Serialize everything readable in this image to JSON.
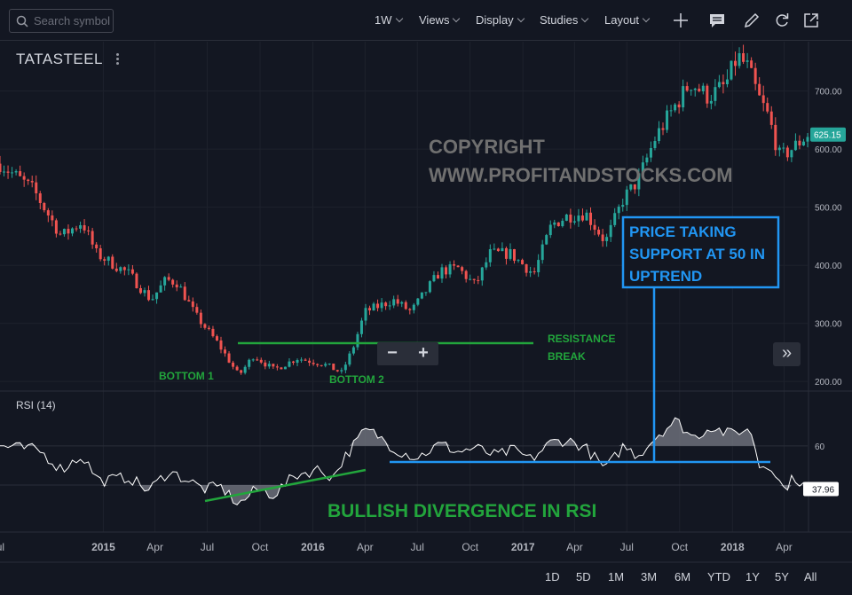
{
  "toolbar": {
    "search_placeholder": "Search symbol",
    "interval": "1W",
    "views": "Views",
    "display": "Display",
    "studies": "Studies",
    "layout": "Layout",
    "icons": [
      "add-icon",
      "notes-icon",
      "draw-icon",
      "refresh-icon",
      "popout-icon"
    ]
  },
  "symbol": "TATASTEEL",
  "rsi_label": "RSI (14)",
  "navigation": {
    "zoom_out": "−",
    "zoom_in": "+",
    "scroll_forward": "»"
  },
  "time_ranges": [
    "1D",
    "5D",
    "1M",
    "3M",
    "6M",
    "YTD",
    "1Y",
    "5Y",
    "All"
  ],
  "colors": {
    "background": "#131722",
    "up_candle": "#26a69a",
    "down_candle": "#ef5350",
    "annotation_green": "#22a53c",
    "annotation_blue": "#2196f3",
    "watermark": "#707070",
    "price_tag": "#26a69a"
  },
  "chart_data": [
    {
      "type": "candlestick",
      "interval": "weekly",
      "y_axis": {
        "ticks": [
          200,
          300,
          400,
          500,
          600,
          700
        ],
        "labels": [
          "200.00",
          "300.00",
          "400.00",
          "500.00",
          "600.00",
          "700.00"
        ],
        "range": [
          185,
          785
        ]
      },
      "x_axis": {
        "ticks": [
          {
            "date": "2014-07-01",
            "label": "Jul"
          },
          {
            "date": "2015-01-01",
            "label": "2015"
          },
          {
            "date": "2015-04-01",
            "label": "Apr"
          },
          {
            "date": "2015-07-01",
            "label": "Jul"
          },
          {
            "date": "2015-10-01",
            "label": "Oct"
          },
          {
            "date": "2016-01-01",
            "label": "2016"
          },
          {
            "date": "2016-04-01",
            "label": "Apr"
          },
          {
            "date": "2016-07-01",
            "label": "Jul"
          },
          {
            "date": "2016-10-01",
            "label": "Oct"
          },
          {
            "date": "2017-01-01",
            "label": "2017"
          },
          {
            "date": "2017-04-01",
            "label": "Apr"
          },
          {
            "date": "2017-07-01",
            "label": "Jul"
          },
          {
            "date": "2017-10-01",
            "label": "Oct"
          },
          {
            "date": "2018-01-01",
            "label": "2018"
          },
          {
            "date": "2018-04-01",
            "label": "Apr"
          }
        ],
        "range": [
          "2014-07-05",
          "2018-05-12"
        ]
      },
      "last_price": "625.15",
      "close_path": [
        {
          "date": "2014-07-05",
          "close": 575
        },
        {
          "date": "2014-09-01",
          "close": 530
        },
        {
          "date": "2014-10-20",
          "close": 450
        },
        {
          "date": "2014-11-25",
          "close": 475
        },
        {
          "date": "2014-12-20",
          "close": 420
        },
        {
          "date": "2015-02-15",
          "close": 385
        },
        {
          "date": "2015-03-25",
          "close": 340
        },
        {
          "date": "2015-04-20",
          "close": 375
        },
        {
          "date": "2015-05-10",
          "close": 370
        },
        {
          "date": "2015-06-10",
          "close": 315
        },
        {
          "date": "2015-07-20",
          "close": 265
        },
        {
          "date": "2015-08-25",
          "close": 210
        },
        {
          "date": "2015-09-20",
          "close": 245
        },
        {
          "date": "2015-10-25",
          "close": 220
        },
        {
          "date": "2015-12-05",
          "close": 240
        },
        {
          "date": "2016-01-20",
          "close": 230
        },
        {
          "date": "2016-02-20",
          "close": 215
        },
        {
          "date": "2016-03-10",
          "close": 255
        },
        {
          "date": "2016-04-01",
          "close": 320
        },
        {
          "date": "2016-05-20",
          "close": 340
        },
        {
          "date": "2016-06-20",
          "close": 320
        },
        {
          "date": "2016-08-10",
          "close": 390
        },
        {
          "date": "2016-09-10",
          "close": 395
        },
        {
          "date": "2016-10-10",
          "close": 365
        },
        {
          "date": "2016-11-05",
          "close": 420
        },
        {
          "date": "2016-12-10",
          "close": 420
        },
        {
          "date": "2017-01-20",
          "close": 385
        },
        {
          "date": "2017-02-20",
          "close": 470
        },
        {
          "date": "2017-03-20",
          "close": 485
        },
        {
          "date": "2017-04-20",
          "close": 490
        },
        {
          "date": "2017-05-25",
          "close": 440
        },
        {
          "date": "2017-06-25",
          "close": 515
        },
        {
          "date": "2017-07-20",
          "close": 545
        },
        {
          "date": "2017-08-20",
          "close": 620
        },
        {
          "date": "2017-09-20",
          "close": 670
        },
        {
          "date": "2017-10-20",
          "close": 715
        },
        {
          "date": "2017-11-20",
          "close": 690
        },
        {
          "date": "2017-12-20",
          "close": 710
        },
        {
          "date": "2018-01-10",
          "close": 760
        },
        {
          "date": "2018-01-28",
          "close": 740
        },
        {
          "date": "2018-02-15",
          "close": 690
        },
        {
          "date": "2018-03-05",
          "close": 655
        },
        {
          "date": "2018-03-25",
          "close": 585
        },
        {
          "date": "2018-04-20",
          "close": 605
        },
        {
          "date": "2018-05-12",
          "close": 625
        }
      ]
    },
    {
      "type": "line",
      "name": "RSI (14)",
      "y_axis": {
        "ticks": [
          60
        ],
        "labels": [
          "60"
        ],
        "reference_lines": [
          40,
          60
        ],
        "range": [
          16,
          88
        ]
      },
      "last_value": "37.96",
      "path": [
        {
          "date": "2014-07-05",
          "value": 60
        },
        {
          "date": "2014-09-10",
          "value": 58
        },
        {
          "date": "2014-10-20",
          "value": 48
        },
        {
          "date": "2014-11-25",
          "value": 55
        },
        {
          "date": "2014-12-25",
          "value": 42
        },
        {
          "date": "2015-02-15",
          "value": 44
        },
        {
          "date": "2015-03-20",
          "value": 37
        },
        {
          "date": "2015-04-25",
          "value": 47
        },
        {
          "date": "2015-05-25",
          "value": 43
        },
        {
          "date": "2015-06-25",
          "value": 38
        },
        {
          "date": "2015-07-25",
          "value": 39
        },
        {
          "date": "2015-08-25",
          "value": 30
        },
        {
          "date": "2015-09-25",
          "value": 38
        },
        {
          "date": "2015-10-25",
          "value": 35
        },
        {
          "date": "2015-12-01",
          "value": 45
        },
        {
          "date": "2016-01-10",
          "value": 48
        },
        {
          "date": "2016-02-05",
          "value": 44
        },
        {
          "date": "2016-02-25",
          "value": 54
        },
        {
          "date": "2016-04-01",
          "value": 68
        },
        {
          "date": "2016-04-20",
          "value": 66
        },
        {
          "date": "2016-05-25",
          "value": 58
        },
        {
          "date": "2016-07-01",
          "value": 54
        },
        {
          "date": "2016-08-10",
          "value": 61
        },
        {
          "date": "2016-09-10",
          "value": 57
        },
        {
          "date": "2016-10-10",
          "value": 59
        },
        {
          "date": "2016-11-15",
          "value": 55
        },
        {
          "date": "2016-12-15",
          "value": 58
        },
        {
          "date": "2017-01-15",
          "value": 53
        },
        {
          "date": "2017-02-20",
          "value": 62
        },
        {
          "date": "2017-03-20",
          "value": 63
        },
        {
          "date": "2017-04-20",
          "value": 59
        },
        {
          "date": "2017-05-25",
          "value": 48
        },
        {
          "date": "2017-06-25",
          "value": 60
        },
        {
          "date": "2017-07-20",
          "value": 55
        },
        {
          "date": "2017-08-25",
          "value": 66
        },
        {
          "date": "2017-09-25",
          "value": 73
        },
        {
          "date": "2017-10-25",
          "value": 64
        },
        {
          "date": "2017-11-25",
          "value": 70
        },
        {
          "date": "2017-12-25",
          "value": 66
        },
        {
          "date": "2018-01-15",
          "value": 68
        },
        {
          "date": "2018-02-05",
          "value": 67
        },
        {
          "date": "2018-02-15",
          "value": 50
        },
        {
          "date": "2018-03-10",
          "value": 50
        },
        {
          "date": "2018-03-30",
          "value": 38
        },
        {
          "date": "2018-04-20",
          "value": 44
        },
        {
          "date": "2018-05-12",
          "value": 38
        }
      ]
    }
  ],
  "annotations": {
    "watermark_line1": "COPYRIGHT",
    "watermark_line2": "WWW.PROFITANDSTOCKS.COM",
    "bottom1": "BOTTOM 1",
    "bottom2": "BOTTOM 2",
    "resistance_line1": "RESISTANCE",
    "resistance_line2": "BREAK",
    "support_line1": "PRICE TAKING",
    "support_line2": "SUPPORT AT 50 IN",
    "support_line3": "UPTREND",
    "divergence": "BULLISH DIVERGENCE IN RSI"
  }
}
